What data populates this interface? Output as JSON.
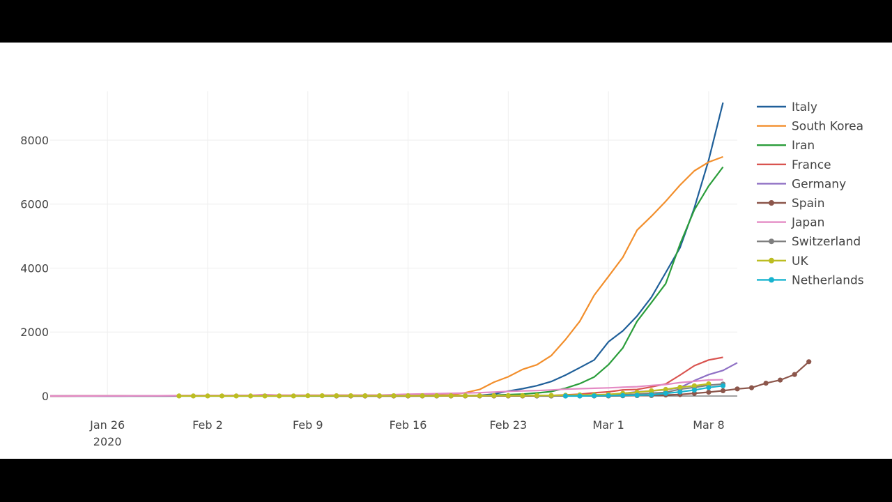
{
  "chart_data": {
    "type": "line",
    "title": "",
    "xlabel": "",
    "ylabel": "",
    "ylim": [
      0,
      9700
    ],
    "yticks": [
      0,
      2000,
      4000,
      6000,
      8000
    ],
    "ytick_labels": [
      "0",
      "2000",
      "4000",
      "6000",
      "8000"
    ],
    "xlim": [
      "2020-01-22",
      "2020-03-10"
    ],
    "xticks": [
      "2020-01-26",
      "2020-02-02",
      "2020-02-09",
      "2020-02-16",
      "2020-02-23",
      "2020-03-01",
      "2020-03-08"
    ],
    "xtick_labels": [
      "Jan 26",
      "Feb 2",
      "Feb 9",
      "Feb 16",
      "Feb 23",
      "Mar 1",
      "Mar 8"
    ],
    "xtick_year_label": "2020",
    "grid": true,
    "legend_position": "right",
    "start_date": "2020-01-22",
    "series": [
      {
        "name": "Italy",
        "color": "#1f5f99",
        "markers": false,
        "start_day": 0,
        "values": [
          0,
          0,
          0,
          0,
          0,
          0,
          0,
          0,
          0,
          2,
          2,
          2,
          2,
          2,
          2,
          3,
          3,
          3,
          3,
          3,
          3,
          3,
          3,
          3,
          3,
          3,
          3,
          3,
          3,
          3,
          20,
          62,
          155,
          229,
          322,
          453,
          655,
          888,
          1128,
          1694,
          2036,
          2502,
          3089,
          3858,
          4636,
          5883,
          7375,
          9172
        ]
      },
      {
        "name": "South Korea",
        "color": "#f28e2b",
        "markers": false,
        "start_day": 0,
        "values": [
          1,
          1,
          2,
          2,
          3,
          4,
          4,
          4,
          4,
          11,
          12,
          15,
          15,
          16,
          19,
          23,
          24,
          24,
          25,
          27,
          28,
          28,
          28,
          28,
          28,
          29,
          30,
          31,
          31,
          104,
          204,
          433,
          602,
          833,
          977,
          1261,
          1766,
          2337,
          3150,
          3736,
          4335,
          5186,
          5621,
          6088,
          6593,
          7041,
          7313,
          7478
        ]
      },
      {
        "name": "Iran",
        "color": "#2a9d3a",
        "markers": false,
        "start_day": 0,
        "values": [
          0,
          0,
          0,
          0,
          0,
          0,
          0,
          0,
          0,
          0,
          0,
          0,
          0,
          0,
          0,
          0,
          0,
          0,
          0,
          0,
          0,
          0,
          0,
          0,
          0,
          0,
          0,
          0,
          2,
          5,
          18,
          28,
          43,
          61,
          95,
          139,
          245,
          388,
          593,
          978,
          1501,
          2336,
          2922,
          3513,
          4747,
          5823,
          6566,
          7161
        ]
      },
      {
        "name": "France",
        "color": "#d9534f",
        "markers": false,
        "start_day": 0,
        "values": [
          0,
          0,
          2,
          3,
          3,
          3,
          4,
          5,
          5,
          5,
          6,
          6,
          6,
          6,
          6,
          6,
          6,
          11,
          11,
          11,
          11,
          11,
          11,
          11,
          12,
          12,
          12,
          12,
          12,
          12,
          12,
          12,
          12,
          12,
          12,
          18,
          38,
          57,
          100,
          130,
          191,
          204,
          285,
          377,
          653,
          949,
          1126,
          1209
        ]
      },
      {
        "name": "Germany",
        "color": "#8e6fc4",
        "markers": false,
        "start_day": 0,
        "values": [
          0,
          0,
          0,
          0,
          0,
          1,
          4,
          4,
          4,
          5,
          8,
          10,
          12,
          12,
          12,
          12,
          13,
          13,
          14,
          14,
          16,
          16,
          16,
          16,
          16,
          16,
          16,
          16,
          16,
          16,
          16,
          16,
          16,
          16,
          16,
          16,
          16,
          18,
          26,
          48,
          79,
          130,
          159,
          196,
          262,
          482,
          670,
          799,
          1040
        ]
      },
      {
        "name": "Spain",
        "color": "#8c564b",
        "markers": true,
        "start_day": 20,
        "values": [
          1,
          1,
          1,
          1,
          1,
          1,
          2,
          2,
          2,
          2,
          2,
          2,
          2,
          2,
          2,
          2,
          2,
          2,
          2,
          2,
          6,
          13,
          15,
          32,
          45,
          84,
          120,
          165,
          222,
          259,
          400,
          500,
          673,
          1073
        ]
      },
      {
        "name": "Japan",
        "color": "#e48ac4",
        "markers": false,
        "start_day": 0,
        "values": [
          2,
          1,
          2,
          2,
          4,
          4,
          7,
          7,
          11,
          15,
          20,
          20,
          20,
          22,
          22,
          45,
          25,
          25,
          26,
          26,
          26,
          28,
          28,
          29,
          43,
          59,
          66,
          74,
          84,
          94,
          105,
          122,
          147,
          159,
          170,
          189,
          214,
          228,
          241,
          256,
          274,
          293,
          331,
          360,
          420,
          461,
          502,
          511
        ]
      },
      {
        "name": "Switzerland",
        "color": "#7f7f7f",
        "markers": true,
        "start_day": 34,
        "values": [
          1,
          1,
          8,
          8,
          18,
          27,
          42,
          56,
          90,
          114,
          214,
          268,
          337,
          374
        ]
      },
      {
        "name": "UK",
        "color": "#bcbd22",
        "markers": true,
        "start_day": 9,
        "values": [
          2,
          2,
          2,
          2,
          2,
          2,
          2,
          3,
          3,
          8,
          8,
          9,
          9,
          9,
          9,
          9,
          9,
          9,
          9,
          9,
          9,
          9,
          13,
          13,
          13,
          16,
          20,
          23,
          36,
          40,
          51,
          85,
          115,
          163,
          206,
          273,
          321,
          382
        ]
      },
      {
        "name": "Netherlands",
        "color": "#17b3cf",
        "markers": true,
        "start_day": 36,
        "values": [
          1,
          1,
          6,
          10,
          18,
          24,
          38,
          82,
          128,
          188,
          265,
          321
        ]
      }
    ]
  }
}
